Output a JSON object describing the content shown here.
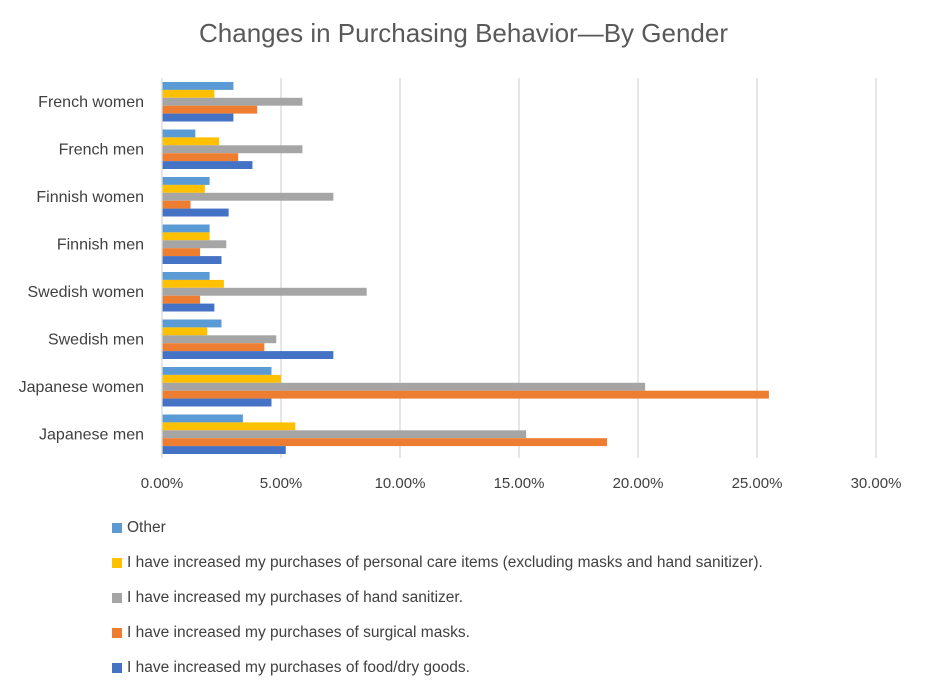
{
  "chart_data": {
    "type": "bar",
    "orientation": "horizontal",
    "title": "Changes in Purchasing Behavior—By Gender",
    "xlabel": "",
    "ylabel": "",
    "xlim": [
      0,
      0.3
    ],
    "x_ticks": [
      0,
      0.05,
      0.1,
      0.15,
      0.2,
      0.25,
      0.3
    ],
    "x_tick_labels": [
      "0.00%",
      "5.00%",
      "10.00%",
      "15.00%",
      "20.00%",
      "25.00%",
      "30.00%"
    ],
    "grid": true,
    "legend_position": "bottom",
    "categories": [
      "French women",
      "French men",
      "Finnish women",
      "Finnish men",
      "Swedish women",
      "Swedish men",
      "Japanese women",
      "Japanese men"
    ],
    "series": [
      {
        "name": "Other",
        "color": "#5B9BD5",
        "values": [
          0.03,
          0.014,
          0.02,
          0.02,
          0.02,
          0.025,
          0.046,
          0.034
        ]
      },
      {
        "name": "I have increased my purchases of personal care items (excluding masks and hand sanitizer).",
        "color": "#FFC000",
        "values": [
          0.022,
          0.024,
          0.018,
          0.02,
          0.026,
          0.019,
          0.05,
          0.056
        ]
      },
      {
        "name": "I have increased my purchases of hand sanitizer.",
        "color": "#A5A5A5",
        "values": [
          0.059,
          0.059,
          0.072,
          0.027,
          0.086,
          0.048,
          0.203,
          0.153
        ]
      },
      {
        "name": "I have increased my purchases of surgical masks.",
        "color": "#ED7D31",
        "values": [
          0.04,
          0.032,
          0.012,
          0.016,
          0.016,
          0.043,
          0.255,
          0.187
        ]
      },
      {
        "name": "I have increased my purchases of food/dry goods.",
        "color": "#4472C4",
        "values": [
          0.03,
          0.038,
          0.028,
          0.025,
          0.022,
          0.072,
          0.046,
          0.052
        ]
      }
    ]
  }
}
